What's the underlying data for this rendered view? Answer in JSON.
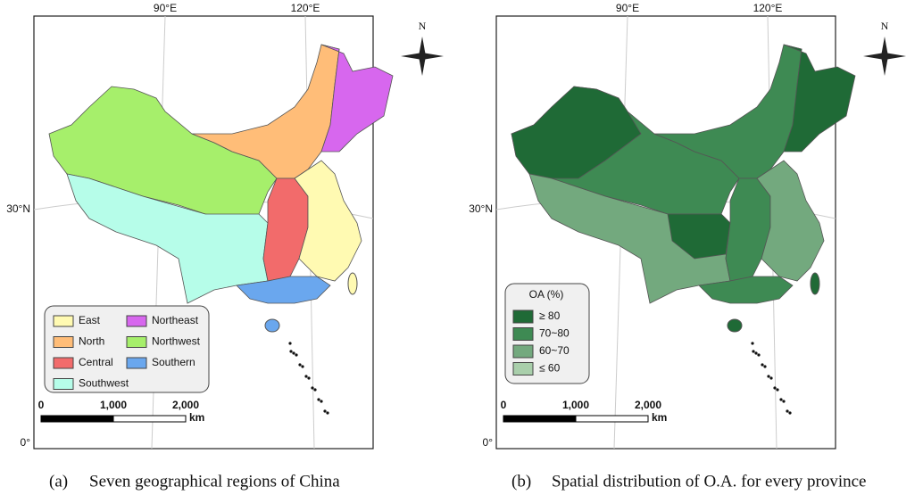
{
  "panels": [
    {
      "graticule": {
        "lon": [
          "90°E",
          "120°E"
        ],
        "lat": [
          "30°N",
          "0°"
        ]
      },
      "north": "N",
      "legend": {
        "items": [
          {
            "label": "East",
            "color": "#fffab2"
          },
          {
            "label": "Northeast",
            "color": "#d767ee"
          },
          {
            "label": "North",
            "color": "#ffbd78"
          },
          {
            "label": "Northwest",
            "color": "#a6ef6b"
          },
          {
            "label": "Central",
            "color": "#f26b6b"
          },
          {
            "label": "Southern",
            "color": "#6aa7ee"
          },
          {
            "label": "Southwest",
            "color": "#b6fde9"
          }
        ]
      },
      "scale": {
        "ticks": [
          "0",
          "1,000",
          "2,000"
        ],
        "unit": "km"
      },
      "caption": {
        "marker": "(a)",
        "text": "Seven geographical regions of China"
      }
    },
    {
      "graticule": {
        "lon": [
          "90°E",
          "120°E"
        ],
        "lat": [
          "30°N",
          "0°"
        ]
      },
      "north": "N",
      "legend": {
        "title": "OA (%)",
        "items": [
          {
            "label": "≥ 80",
            "color": "#1f6a36"
          },
          {
            "label": "70~80",
            "color": "#3e8a53"
          },
          {
            "label": "60~70",
            "color": "#73a97e"
          },
          {
            "label": "≤ 60",
            "color": "#a9cfab"
          }
        ]
      },
      "scale": {
        "ticks": [
          "0",
          "1,000",
          "2,000"
        ],
        "unit": "km"
      },
      "caption": {
        "marker": "(b)",
        "text": "Spatial distribution of O.A. for every province"
      }
    }
  ]
}
